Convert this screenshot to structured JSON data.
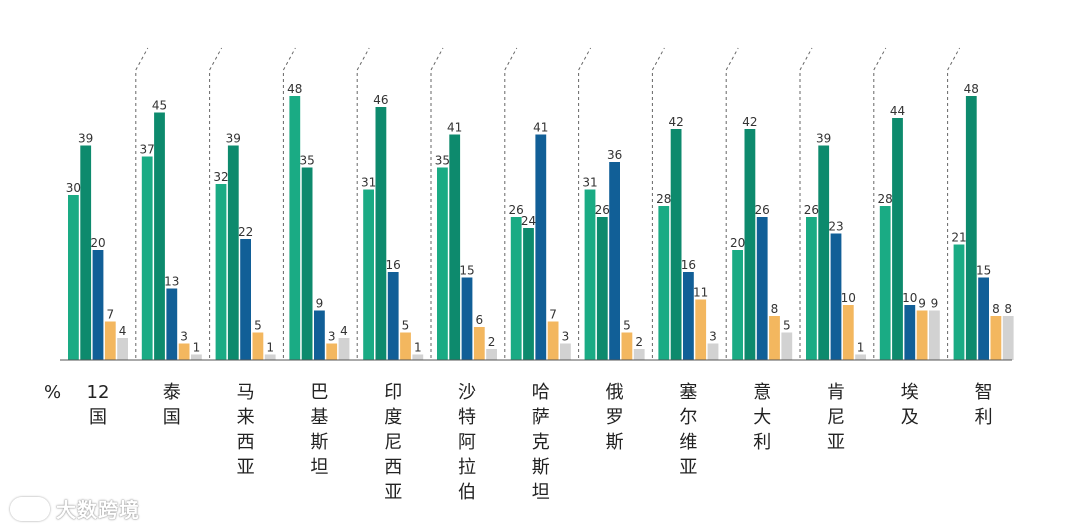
{
  "chart_data": {
    "type": "bar",
    "unit_label": "%",
    "categories": [
      "12国",
      "泰国",
      "马来西亚",
      "巴基斯坦",
      "印度尼西亚",
      "沙特阿拉伯",
      "哈萨克斯坦",
      "俄罗斯",
      "塞尔维亚",
      "意大利",
      "肯尼亚",
      "埃及",
      "智利"
    ],
    "series": [
      {
        "color": "#1aab84",
        "values": [
          30,
          37,
          32,
          48,
          31,
          35,
          26,
          31,
          28,
          20,
          26,
          28,
          21
        ]
      },
      {
        "color": "#0d8a6d",
        "values": [
          39,
          45,
          39,
          35,
          46,
          41,
          24,
          26,
          42,
          42,
          39,
          44,
          48
        ]
      },
      {
        "color": "#115f97",
        "values": [
          20,
          13,
          22,
          9,
          16,
          15,
          41,
          36,
          16,
          26,
          23,
          10,
          15
        ]
      },
      {
        "color": "#f3b75f",
        "values": [
          7,
          3,
          5,
          3,
          5,
          6,
          7,
          5,
          11,
          8,
          10,
          9,
          8
        ]
      },
      {
        "color": "#d2d2d2",
        "values": [
          4,
          1,
          1,
          4,
          1,
          2,
          3,
          2,
          3,
          5,
          1,
          9,
          8
        ]
      }
    ],
    "ylim": [
      0,
      50
    ],
    "grid": false,
    "legend": "none"
  },
  "watermark": {
    "text": "大数跨境"
  }
}
